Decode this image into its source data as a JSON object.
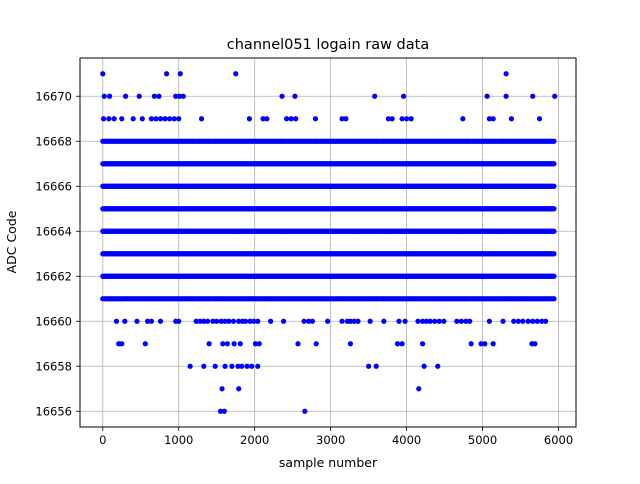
{
  "chart_data": {
    "type": "scatter",
    "title": "channel051 logain raw data",
    "xlabel": "sample number",
    "ylabel": "ADC Code",
    "xlim": [
      -300,
      6230
    ],
    "ylim": [
      16655.3,
      16671.7
    ],
    "x_ticks": [
      0,
      1000,
      2000,
      3000,
      4000,
      5000,
      6000
    ],
    "x_tick_labels": [
      "0",
      "1000",
      "2000",
      "3000",
      "4000",
      "5000",
      "6000"
    ],
    "y_ticks": [
      16656,
      16658,
      16660,
      16662,
      16664,
      16666,
      16668,
      16670
    ],
    "y_tick_labels": [
      "16656",
      "16658",
      "16660",
      "16662",
      "16664",
      "16666",
      "16668",
      "16670"
    ],
    "grid": true,
    "marker_color": "#0000ff",
    "series": [
      {
        "bands": [
          {
            "y": 16662,
            "x_start": 0,
            "x_end": 5950,
            "density": "dense"
          },
          {
            "y": 16663,
            "x_start": 0,
            "x_end": 5950,
            "density": "dense"
          },
          {
            "y": 16664,
            "x_start": 0,
            "x_end": 5950,
            "density": "dense"
          },
          {
            "y": 16665,
            "x_start": 0,
            "x_end": 5950,
            "density": "dense"
          },
          {
            "y": 16666,
            "x_start": 0,
            "x_end": 5950,
            "density": "dense"
          },
          {
            "y": 16667,
            "x_start": 0,
            "x_end": 5950,
            "density": "dense"
          },
          {
            "y": 16661,
            "x_start": 0,
            "x_end": 5950,
            "density": "medium"
          },
          {
            "y": 16668,
            "x_start": 0,
            "x_end": 5950,
            "density": "medium"
          }
        ],
        "points": [
          {
            "x": 0,
            "y": 16671
          },
          {
            "x": 840,
            "y": 16671
          },
          {
            "x": 1020,
            "y": 16671
          },
          {
            "x": 1750,
            "y": 16671
          },
          {
            "x": 5310,
            "y": 16671
          },
          {
            "x": 20,
            "y": 16670
          },
          {
            "x": 90,
            "y": 16670
          },
          {
            "x": 300,
            "y": 16670
          },
          {
            "x": 480,
            "y": 16670
          },
          {
            "x": 680,
            "y": 16670
          },
          {
            "x": 740,
            "y": 16670
          },
          {
            "x": 960,
            "y": 16670
          },
          {
            "x": 1010,
            "y": 16670
          },
          {
            "x": 1060,
            "y": 16670
          },
          {
            "x": 2360,
            "y": 16670
          },
          {
            "x": 2530,
            "y": 16670
          },
          {
            "x": 3580,
            "y": 16670
          },
          {
            "x": 3960,
            "y": 16670
          },
          {
            "x": 5060,
            "y": 16670
          },
          {
            "x": 5310,
            "y": 16670
          },
          {
            "x": 5660,
            "y": 16670
          },
          {
            "x": 5950,
            "y": 16670
          },
          {
            "x": 10,
            "y": 16669
          },
          {
            "x": 80,
            "y": 16669
          },
          {
            "x": 150,
            "y": 16669
          },
          {
            "x": 250,
            "y": 16669
          },
          {
            "x": 400,
            "y": 16669
          },
          {
            "x": 520,
            "y": 16669
          },
          {
            "x": 640,
            "y": 16669
          },
          {
            "x": 700,
            "y": 16669
          },
          {
            "x": 760,
            "y": 16669
          },
          {
            "x": 820,
            "y": 16669
          },
          {
            "x": 880,
            "y": 16669
          },
          {
            "x": 940,
            "y": 16669
          },
          {
            "x": 1000,
            "y": 16669
          },
          {
            "x": 1300,
            "y": 16669
          },
          {
            "x": 1930,
            "y": 16669
          },
          {
            "x": 2110,
            "y": 16669
          },
          {
            "x": 2160,
            "y": 16669
          },
          {
            "x": 2420,
            "y": 16669
          },
          {
            "x": 2480,
            "y": 16669
          },
          {
            "x": 2540,
            "y": 16669
          },
          {
            "x": 2800,
            "y": 16669
          },
          {
            "x": 3150,
            "y": 16669
          },
          {
            "x": 3200,
            "y": 16669
          },
          {
            "x": 3760,
            "y": 16669
          },
          {
            "x": 3810,
            "y": 16669
          },
          {
            "x": 3940,
            "y": 16669
          },
          {
            "x": 4000,
            "y": 16669
          },
          {
            "x": 4060,
            "y": 16669
          },
          {
            "x": 4740,
            "y": 16669
          },
          {
            "x": 5090,
            "y": 16669
          },
          {
            "x": 5140,
            "y": 16669
          },
          {
            "x": 5380,
            "y": 16669
          },
          {
            "x": 5750,
            "y": 16669
          },
          {
            "x": 180,
            "y": 16660
          },
          {
            "x": 290,
            "y": 16660
          },
          {
            "x": 450,
            "y": 16660
          },
          {
            "x": 590,
            "y": 16660
          },
          {
            "x": 640,
            "y": 16660
          },
          {
            "x": 760,
            "y": 16660
          },
          {
            "x": 960,
            "y": 16660
          },
          {
            "x": 1000,
            "y": 16660
          },
          {
            "x": 1230,
            "y": 16660
          },
          {
            "x": 1280,
            "y": 16660
          },
          {
            "x": 1330,
            "y": 16660
          },
          {
            "x": 1380,
            "y": 16660
          },
          {
            "x": 1450,
            "y": 16660
          },
          {
            "x": 1500,
            "y": 16660
          },
          {
            "x": 1560,
            "y": 16660
          },
          {
            "x": 1610,
            "y": 16660
          },
          {
            "x": 1660,
            "y": 16660
          },
          {
            "x": 1720,
            "y": 16660
          },
          {
            "x": 1790,
            "y": 16660
          },
          {
            "x": 1840,
            "y": 16660
          },
          {
            "x": 1880,
            "y": 16660
          },
          {
            "x": 1940,
            "y": 16660
          },
          {
            "x": 1990,
            "y": 16660
          },
          {
            "x": 2040,
            "y": 16660
          },
          {
            "x": 2210,
            "y": 16660
          },
          {
            "x": 2380,
            "y": 16660
          },
          {
            "x": 2650,
            "y": 16660
          },
          {
            "x": 2710,
            "y": 16660
          },
          {
            "x": 2760,
            "y": 16660
          },
          {
            "x": 2960,
            "y": 16660
          },
          {
            "x": 3150,
            "y": 16660
          },
          {
            "x": 3220,
            "y": 16660
          },
          {
            "x": 3260,
            "y": 16660
          },
          {
            "x": 3310,
            "y": 16660
          },
          {
            "x": 3360,
            "y": 16660
          },
          {
            "x": 3520,
            "y": 16660
          },
          {
            "x": 3700,
            "y": 16660
          },
          {
            "x": 3900,
            "y": 16660
          },
          {
            "x": 3980,
            "y": 16660
          },
          {
            "x": 4150,
            "y": 16660
          },
          {
            "x": 4210,
            "y": 16660
          },
          {
            "x": 4260,
            "y": 16660
          },
          {
            "x": 4310,
            "y": 16660
          },
          {
            "x": 4370,
            "y": 16660
          },
          {
            "x": 4430,
            "y": 16660
          },
          {
            "x": 4490,
            "y": 16660
          },
          {
            "x": 4660,
            "y": 16660
          },
          {
            "x": 4720,
            "y": 16660
          },
          {
            "x": 4780,
            "y": 16660
          },
          {
            "x": 4830,
            "y": 16660
          },
          {
            "x": 5090,
            "y": 16660
          },
          {
            "x": 5270,
            "y": 16660
          },
          {
            "x": 5410,
            "y": 16660
          },
          {
            "x": 5470,
            "y": 16660
          },
          {
            "x": 5530,
            "y": 16660
          },
          {
            "x": 5600,
            "y": 16660
          },
          {
            "x": 5660,
            "y": 16660
          },
          {
            "x": 5720,
            "y": 16660
          },
          {
            "x": 5780,
            "y": 16660
          },
          {
            "x": 5830,
            "y": 16660
          },
          {
            "x": 210,
            "y": 16659
          },
          {
            "x": 250,
            "y": 16659
          },
          {
            "x": 560,
            "y": 16659
          },
          {
            "x": 1400,
            "y": 16659
          },
          {
            "x": 1580,
            "y": 16659
          },
          {
            "x": 1640,
            "y": 16659
          },
          {
            "x": 1730,
            "y": 16659
          },
          {
            "x": 1810,
            "y": 16659
          },
          {
            "x": 2010,
            "y": 16659
          },
          {
            "x": 2060,
            "y": 16659
          },
          {
            "x": 2570,
            "y": 16659
          },
          {
            "x": 2810,
            "y": 16659
          },
          {
            "x": 3260,
            "y": 16659
          },
          {
            "x": 3880,
            "y": 16659
          },
          {
            "x": 3940,
            "y": 16659
          },
          {
            "x": 4210,
            "y": 16659
          },
          {
            "x": 4850,
            "y": 16659
          },
          {
            "x": 4980,
            "y": 16659
          },
          {
            "x": 5030,
            "y": 16659
          },
          {
            "x": 5140,
            "y": 16659
          },
          {
            "x": 5650,
            "y": 16659
          },
          {
            "x": 5690,
            "y": 16659
          },
          {
            "x": 1150,
            "y": 16658
          },
          {
            "x": 1330,
            "y": 16658
          },
          {
            "x": 1480,
            "y": 16658
          },
          {
            "x": 1610,
            "y": 16658
          },
          {
            "x": 1700,
            "y": 16658
          },
          {
            "x": 1780,
            "y": 16658
          },
          {
            "x": 1830,
            "y": 16658
          },
          {
            "x": 1900,
            "y": 16658
          },
          {
            "x": 1960,
            "y": 16658
          },
          {
            "x": 2040,
            "y": 16658
          },
          {
            "x": 3500,
            "y": 16658
          },
          {
            "x": 3600,
            "y": 16658
          },
          {
            "x": 4230,
            "y": 16658
          },
          {
            "x": 4410,
            "y": 16658
          },
          {
            "x": 1570,
            "y": 16657
          },
          {
            "x": 1790,
            "y": 16657
          },
          {
            "x": 4160,
            "y": 16657
          },
          {
            "x": 1550,
            "y": 16656
          },
          {
            "x": 1600,
            "y": 16656
          },
          {
            "x": 2660,
            "y": 16656
          }
        ]
      }
    ]
  }
}
